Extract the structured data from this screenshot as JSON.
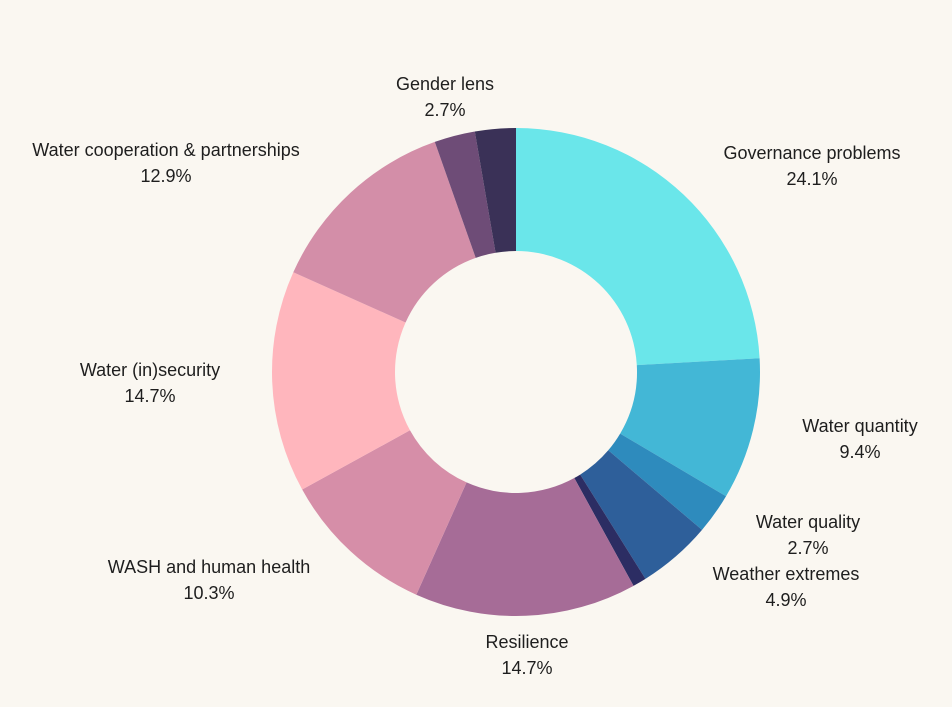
{
  "chart_data": {
    "type": "pie",
    "variant": "donut",
    "categories": [
      "Governance problems",
      "Water quantity",
      "Water quality",
      "Weather extremes",
      "",
      "Resilience",
      "WASH and human health",
      "Water (in)security",
      "Water cooperation & partnerships",
      "",
      "Gender lens"
    ],
    "values": [
      24.1,
      9.4,
      2.7,
      4.9,
      0.9,
      14.7,
      10.3,
      14.7,
      12.9,
      2.7,
      2.7
    ],
    "value_labels": [
      "24.1%",
      "9.4%",
      "2.7%",
      "4.9%",
      "",
      "14.7%",
      "10.3%",
      "14.7%",
      "12.9%",
      "",
      "2.7%"
    ],
    "colors": [
      "#6ae6ea",
      "#43b7d6",
      "#2e8bbd",
      "#2e5f9a",
      "#2c2d63",
      "#a66c97",
      "#d68ea8",
      "#ffb6bd",
      "#d38ea8",
      "#6e4c77",
      "#3a3157"
    ],
    "legend": "none",
    "title": ""
  }
}
